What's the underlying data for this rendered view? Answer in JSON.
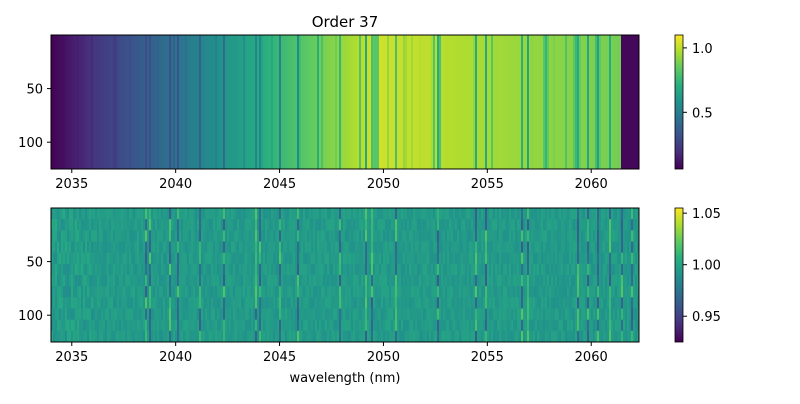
{
  "chart_data": [
    {
      "type": "heatmap",
      "title": "Order 37",
      "xlabel": "",
      "ylabel": "",
      "xlim": [
        2034,
        2062.3
      ],
      "ylim": [
        0,
        125
      ],
      "x_ticks": [
        2035,
        2040,
        2045,
        2050,
        2055,
        2060
      ],
      "y_ticks": [
        50,
        100
      ],
      "colormap": "viridis",
      "colorbar": {
        "range": [
          0.06,
          1.1
        ],
        "ticks": [
          0.5,
          1.0
        ],
        "tick_labels": [
          "0.5",
          "1.0"
        ]
      },
      "x_tick_labels": [
        "2035",
        "2040",
        "2045",
        "2050",
        "2055",
        "2060"
      ],
      "y_tick_labels": [
        "50",
        "100"
      ]
    },
    {
      "type": "heatmap",
      "title": "",
      "xlabel": "wavelength (nm)",
      "ylabel": "",
      "xlim": [
        2034,
        2062.3
      ],
      "ylim": [
        0,
        125
      ],
      "x_ticks": [
        2035,
        2040,
        2045,
        2050,
        2055,
        2060
      ],
      "y_ticks": [
        50,
        100
      ],
      "colormap": "viridis",
      "colorbar": {
        "range": [
          0.925,
          1.055
        ],
        "ticks": [
          0.95,
          1.0,
          1.05
        ],
        "tick_labels": [
          "0.95",
          "1.00",
          "1.05"
        ]
      },
      "x_tick_labels": [
        "2035",
        "2040",
        "2045",
        "2050",
        "2055",
        "2060"
      ],
      "y_tick_labels": [
        "50",
        "100"
      ]
    }
  ]
}
